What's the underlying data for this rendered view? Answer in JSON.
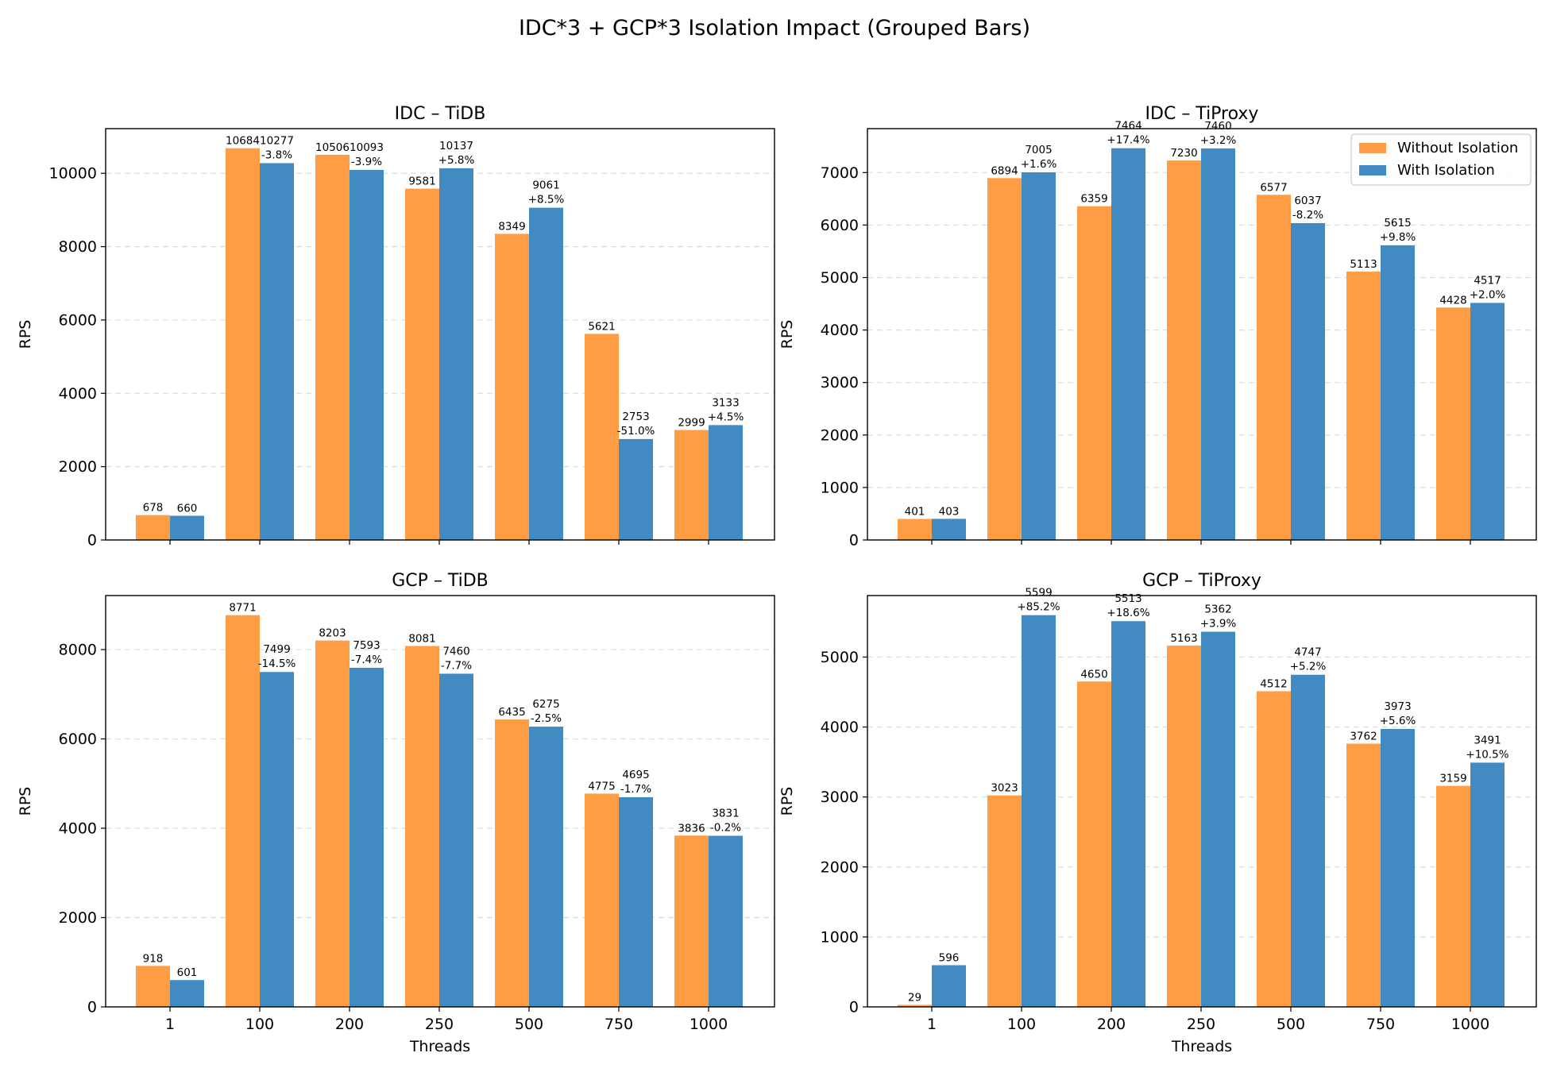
{
  "figure": {
    "title": "IDC*3 + GCP*3 Isolation Impact (Grouped Bars)",
    "colors": {
      "without": "#ff9d45",
      "with": "#428bc2",
      "grid": "#dcdcdc"
    },
    "legend": {
      "placement": "top-right",
      "entries": [
        "Without Isolation",
        "With Isolation"
      ]
    }
  },
  "chart_data": [
    {
      "type": "bar",
      "title": "IDC – TiDB",
      "xlabel": "",
      "ylabel": "RPS",
      "categories": [
        "1",
        "100",
        "200",
        "250",
        "500",
        "750",
        "1000"
      ],
      "ylim": [
        0,
        11218
      ],
      "yticks": [
        0,
        2000,
        4000,
        6000,
        8000,
        10000
      ],
      "grid": true,
      "series": [
        {
          "name": "Without Isolation",
          "values": [
            678,
            10684,
            10506,
            9581,
            8349,
            5621,
            2999
          ]
        },
        {
          "name": "With Isolation",
          "values": [
            660,
            10277,
            10093,
            10137,
            9061,
            2753,
            3133
          ]
        }
      ],
      "change_labels": [
        "",
        "-3.8%",
        "-3.9%",
        "+5.8%",
        "+8.5%",
        "-51.0%",
        "+4.5%"
      ]
    },
    {
      "type": "bar",
      "title": "IDC – TiProxy",
      "xlabel": "",
      "ylabel": "RPS",
      "categories": [
        "1",
        "100",
        "200",
        "250",
        "500",
        "750",
        "1000"
      ],
      "ylim": [
        0,
        7837
      ],
      "yticks": [
        0,
        1000,
        2000,
        3000,
        4000,
        5000,
        6000,
        7000
      ],
      "grid": true,
      "series": [
        {
          "name": "Without Isolation",
          "values": [
            401,
            6894,
            6359,
            7230,
            6577,
            5113,
            4428
          ]
        },
        {
          "name": "With Isolation",
          "values": [
            403,
            7005,
            7464,
            7460,
            6037,
            5615,
            4517
          ]
        }
      ],
      "change_labels": [
        "",
        "+1.6%",
        "+17.4%",
        "+3.2%",
        "-8.2%",
        "+9.8%",
        "+2.0%"
      ]
    },
    {
      "type": "bar",
      "title": "GCP – TiDB",
      "xlabel": "Threads",
      "ylabel": "RPS",
      "categories": [
        "1",
        "100",
        "200",
        "250",
        "500",
        "750",
        "1000"
      ],
      "ylim": [
        0,
        9210
      ],
      "yticks": [
        0,
        2000,
        4000,
        6000,
        8000
      ],
      "grid": true,
      "series": [
        {
          "name": "Without Isolation",
          "values": [
            918,
            8771,
            8203,
            8081,
            6435,
            4775,
            3836
          ]
        },
        {
          "name": "With Isolation",
          "values": [
            601,
            7499,
            7593,
            7460,
            6275,
            4695,
            3831
          ]
        }
      ],
      "change_labels": [
        "",
        "-14.5%",
        "-7.4%",
        "-7.7%",
        "-2.5%",
        "-1.7%",
        "-0.2%"
      ]
    },
    {
      "type": "bar",
      "title": "GCP – TiProxy",
      "xlabel": "Threads",
      "ylabel": "RPS",
      "categories": [
        "1",
        "100",
        "200",
        "250",
        "500",
        "750",
        "1000"
      ],
      "ylim": [
        0,
        5879
      ],
      "yticks": [
        0,
        1000,
        2000,
        3000,
        4000,
        5000
      ],
      "grid": true,
      "series": [
        {
          "name": "Without Isolation",
          "values": [
            29,
            3023,
            4650,
            5163,
            4512,
            3762,
            3159
          ]
        },
        {
          "name": "With Isolation",
          "values": [
            596,
            5599,
            5513,
            5362,
            4747,
            3973,
            3491
          ]
        }
      ],
      "change_labels": [
        "",
        "+85.2%",
        "+18.6%",
        "+3.9%",
        "+5.2%",
        "+5.6%",
        "+10.5%"
      ]
    }
  ]
}
